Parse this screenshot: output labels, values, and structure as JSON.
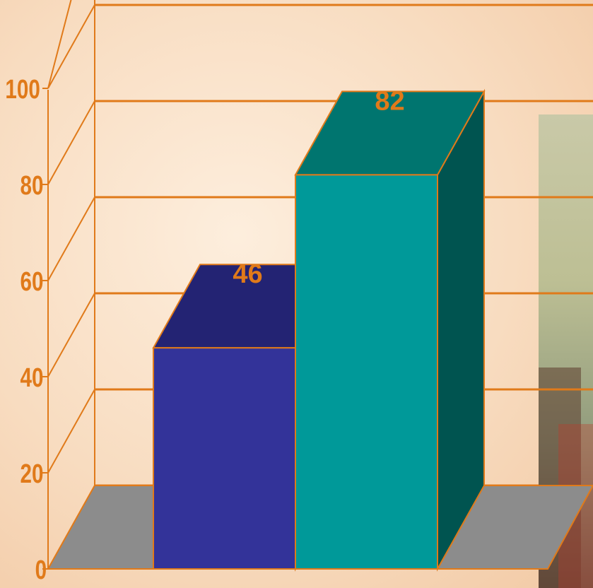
{
  "chart_data": {
    "type": "bar",
    "style": "3d",
    "categories": [
      "",
      ""
    ],
    "series": [
      {
        "values": [
          46,
          82
        ]
      }
    ],
    "bar_colors": [
      {
        "front": "#333399",
        "top": "#232373",
        "side": "#1b1b5e"
      },
      {
        "front": "#009999",
        "top": "#00756f",
        "side": "#005450"
      }
    ],
    "data_labels": [
      "46",
      "82"
    ],
    "y_ticks": [
      "0",
      "20",
      "40",
      "60",
      "80",
      "100"
    ],
    "ylim": [
      0,
      100
    ],
    "grid": true,
    "accent_color": "#e07a1a",
    "floor_color": "#8c8c8c",
    "photo_inset": true
  }
}
